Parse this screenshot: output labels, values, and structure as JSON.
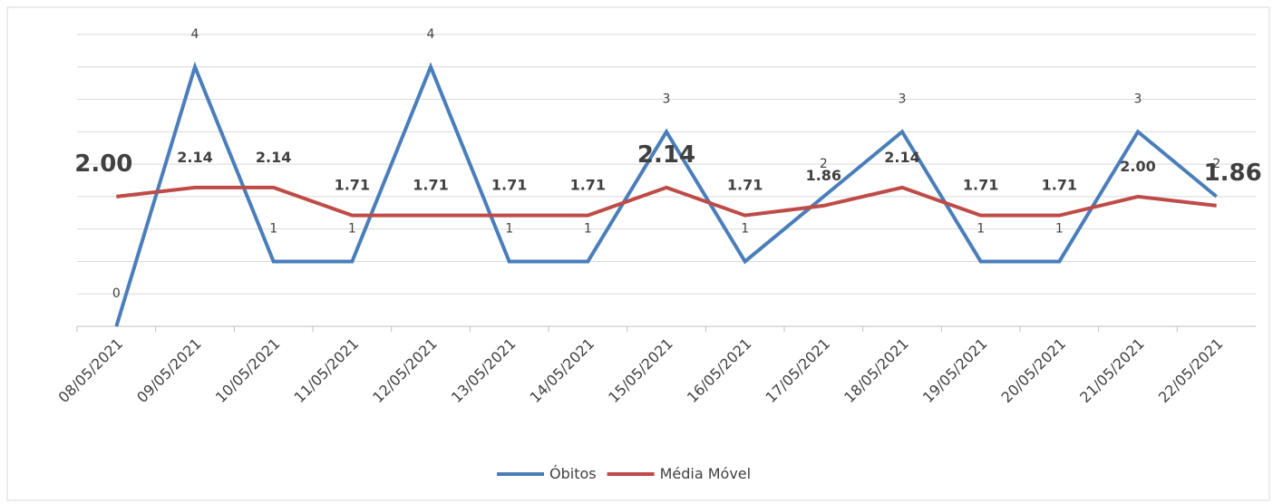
{
  "chart_data": {
    "type": "line",
    "categories": [
      "08/05/2021",
      "09/05/2021",
      "10/05/2021",
      "11/05/2021",
      "12/05/2021",
      "13/05/2021",
      "14/05/2021",
      "15/05/2021",
      "16/05/2021",
      "17/05/2021",
      "18/05/2021",
      "19/05/2021",
      "20/05/2021",
      "21/05/2021",
      "22/05/2021"
    ],
    "series": [
      {
        "name": "Óbitos",
        "color": "#4a7ebb",
        "values": [
          0,
          4,
          1,
          1,
          4,
          1,
          1,
          3,
          1,
          2,
          3,
          1,
          1,
          3,
          2
        ]
      },
      {
        "name": "Média Móvel",
        "color": "#be4b48",
        "values": [
          2.0,
          2.14,
          2.14,
          1.71,
          1.71,
          1.71,
          1.71,
          2.14,
          1.71,
          1.86,
          2.14,
          1.71,
          1.71,
          2.0,
          1.86
        ],
        "value_labels": [
          "2.00",
          "2.14",
          "2.14",
          "1.71",
          "1.71",
          "1.71",
          "1.71",
          "2.14",
          "1.71",
          "1.86",
          "2.14",
          "1.71",
          "1.71",
          "2.00",
          "1.86"
        ]
      }
    ],
    "ylim": [
      0,
      4.5
    ],
    "yticks": [
      0,
      0.5,
      1,
      1.5,
      2,
      2.5,
      3,
      3.5,
      4,
      4.5
    ],
    "grid": true
  }
}
